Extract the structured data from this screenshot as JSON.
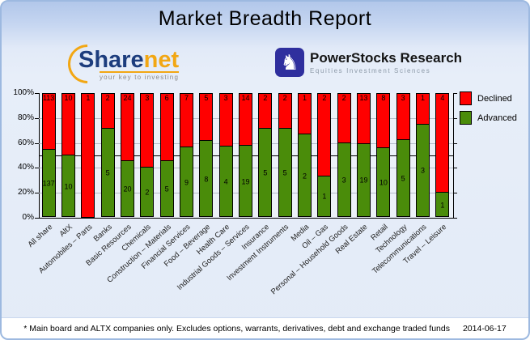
{
  "title": "Market Breadth Report",
  "logos": {
    "sharenet": {
      "part1": "Share",
      "part2": "net",
      "tagline": "your key to investing"
    },
    "powerstocks": {
      "name": "PowerStocks Research",
      "subtitle": "Equities Investment Sciences",
      "knight_glyph": "♞"
    }
  },
  "chart_data": {
    "type": "bar",
    "stacked": true,
    "percent_stacked": true,
    "title": "",
    "xlabel": "",
    "ylabel": "",
    "ylim": [
      0,
      100
    ],
    "ytick_step": 20,
    "yticks": [
      "0%",
      "20%",
      "40%",
      "60%",
      "80%",
      "100%"
    ],
    "grid": true,
    "reference_line_pct": 50,
    "legend_position": "top-right",
    "categories": [
      "All share",
      "AltX",
      "Automobiles – Parts",
      "Banks",
      "Basic Resources",
      "Chemicals",
      "Construction – Materials",
      "Financial Services",
      "Food – Beverage",
      "Health Care",
      "Industrial Goods – Services",
      "Insurance",
      "Investment Instruments",
      "Media",
      "Oil – Gas",
      "Personal – Household Goods",
      "Real Estate",
      "Retail",
      "Technology",
      "Telecommunications",
      "Travel – Leisure"
    ],
    "series": [
      {
        "name": "Declined",
        "color": "#ff0000",
        "values": [
          113,
          10,
          1,
          2,
          24,
          3,
          6,
          7,
          5,
          3,
          14,
          2,
          2,
          1,
          2,
          2,
          13,
          8,
          3,
          1,
          4
        ]
      },
      {
        "name": "Advanced",
        "color": "#4a8c0a",
        "values": [
          137,
          10,
          0,
          5,
          20,
          2,
          5,
          9,
          8,
          4,
          19,
          5,
          5,
          2,
          1,
          3,
          19,
          10,
          5,
          3,
          1
        ]
      }
    ]
  },
  "footer": {
    "note": "* Main board and ALTX companies only. Excludes options, warrants, derivatives, debt and exchange traded funds",
    "date": "2014-06-17"
  }
}
